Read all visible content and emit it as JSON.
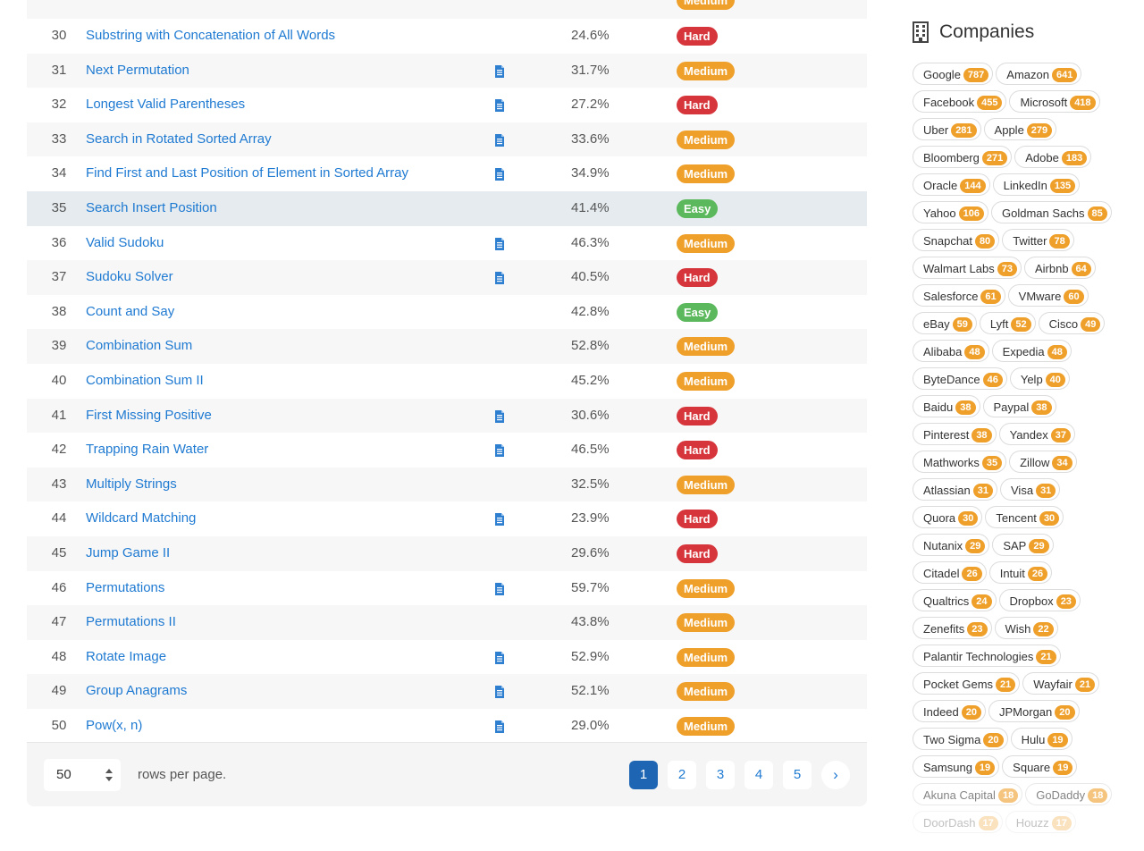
{
  "table": {
    "cut_row": {
      "difficulty": "Medium"
    },
    "rows": [
      {
        "num": "30",
        "title": "Substring with Concatenation of All Words",
        "solution": false,
        "acceptance": "24.6%",
        "difficulty": "Hard"
      },
      {
        "num": "31",
        "title": "Next Permutation",
        "solution": true,
        "acceptance": "31.7%",
        "difficulty": "Medium"
      },
      {
        "num": "32",
        "title": "Longest Valid Parentheses",
        "solution": true,
        "acceptance": "27.2%",
        "difficulty": "Hard"
      },
      {
        "num": "33",
        "title": "Search in Rotated Sorted Array",
        "solution": true,
        "acceptance": "33.6%",
        "difficulty": "Medium"
      },
      {
        "num": "34",
        "title": "Find First and Last Position of Element in Sorted Array",
        "solution": true,
        "acceptance": "34.9%",
        "difficulty": "Medium"
      },
      {
        "num": "35",
        "title": "Search Insert Position",
        "solution": false,
        "acceptance": "41.4%",
        "difficulty": "Easy",
        "highlight": true
      },
      {
        "num": "36",
        "title": "Valid Sudoku",
        "solution": true,
        "acceptance": "46.3%",
        "difficulty": "Medium"
      },
      {
        "num": "37",
        "title": "Sudoku Solver",
        "solution": true,
        "acceptance": "40.5%",
        "difficulty": "Hard"
      },
      {
        "num": "38",
        "title": "Count and Say",
        "solution": false,
        "acceptance": "42.8%",
        "difficulty": "Easy"
      },
      {
        "num": "39",
        "title": "Combination Sum",
        "solution": false,
        "acceptance": "52.8%",
        "difficulty": "Medium"
      },
      {
        "num": "40",
        "title": "Combination Sum II",
        "solution": false,
        "acceptance": "45.2%",
        "difficulty": "Medium"
      },
      {
        "num": "41",
        "title": "First Missing Positive",
        "solution": true,
        "acceptance": "30.6%",
        "difficulty": "Hard"
      },
      {
        "num": "42",
        "title": "Trapping Rain Water",
        "solution": true,
        "acceptance": "46.5%",
        "difficulty": "Hard"
      },
      {
        "num": "43",
        "title": "Multiply Strings",
        "solution": false,
        "acceptance": "32.5%",
        "difficulty": "Medium"
      },
      {
        "num": "44",
        "title": "Wildcard Matching",
        "solution": true,
        "acceptance": "23.9%",
        "difficulty": "Hard"
      },
      {
        "num": "45",
        "title": "Jump Game II",
        "solution": false,
        "acceptance": "29.6%",
        "difficulty": "Hard"
      },
      {
        "num": "46",
        "title": "Permutations",
        "solution": true,
        "acceptance": "59.7%",
        "difficulty": "Medium"
      },
      {
        "num": "47",
        "title": "Permutations II",
        "solution": false,
        "acceptance": "43.8%",
        "difficulty": "Medium"
      },
      {
        "num": "48",
        "title": "Rotate Image",
        "solution": true,
        "acceptance": "52.9%",
        "difficulty": "Medium"
      },
      {
        "num": "49",
        "title": "Group Anagrams",
        "solution": true,
        "acceptance": "52.1%",
        "difficulty": "Medium"
      },
      {
        "num": "50",
        "title": "Pow(x, n)",
        "solution": true,
        "acceptance": "29.0%",
        "difficulty": "Medium"
      }
    ]
  },
  "footer": {
    "rows_value": "50",
    "rows_per_page_label": "rows per page.",
    "pages": [
      "1",
      "2",
      "3",
      "4",
      "5"
    ],
    "active_page": "1",
    "next_label": "›"
  },
  "companies": {
    "heading": "Companies",
    "icon": "building-icon",
    "rows": [
      [
        [
          "Google",
          "787"
        ],
        [
          "Amazon",
          "641"
        ]
      ],
      [
        [
          "Facebook",
          "455"
        ],
        [
          "Microsoft",
          "418"
        ]
      ],
      [
        [
          "Uber",
          "281"
        ],
        [
          "Apple",
          "279"
        ]
      ],
      [
        [
          "Bloomberg",
          "271"
        ],
        [
          "Adobe",
          "183"
        ]
      ],
      [
        [
          "Oracle",
          "144"
        ],
        [
          "LinkedIn",
          "135"
        ]
      ],
      [
        [
          "Yahoo",
          "106"
        ],
        [
          "Goldman Sachs",
          "85"
        ]
      ],
      [
        [
          "Snapchat",
          "80"
        ],
        [
          "Twitter",
          "78"
        ]
      ],
      [
        [
          "Walmart Labs",
          "73"
        ],
        [
          "Airbnb",
          "64"
        ]
      ],
      [
        [
          "Salesforce",
          "61"
        ],
        [
          "VMware",
          "60"
        ]
      ],
      [
        [
          "eBay",
          "59"
        ],
        [
          "Lyft",
          "52"
        ],
        [
          "Cisco",
          "49"
        ]
      ],
      [
        [
          "Alibaba",
          "48"
        ],
        [
          "Expedia",
          "48"
        ]
      ],
      [
        [
          "ByteDance",
          "46"
        ],
        [
          "Yelp",
          "40"
        ]
      ],
      [
        [
          "Baidu",
          "38"
        ],
        [
          "Paypal",
          "38"
        ]
      ],
      [
        [
          "Pinterest",
          "38"
        ],
        [
          "Yandex",
          "37"
        ]
      ],
      [
        [
          "Mathworks",
          "35"
        ],
        [
          "Zillow",
          "34"
        ]
      ],
      [
        [
          "Atlassian",
          "31"
        ],
        [
          "Visa",
          "31"
        ]
      ],
      [
        [
          "Quora",
          "30"
        ],
        [
          "Tencent",
          "30"
        ]
      ],
      [
        [
          "Nutanix",
          "29"
        ],
        [
          "SAP",
          "29"
        ]
      ],
      [
        [
          "Citadel",
          "26"
        ],
        [
          "Intuit",
          "26"
        ]
      ],
      [
        [
          "Qualtrics",
          "24"
        ],
        [
          "Dropbox",
          "23"
        ]
      ],
      [
        [
          "Zenefits",
          "23"
        ],
        [
          "Wish",
          "22"
        ]
      ],
      [
        [
          "Palantir Technologies",
          "21"
        ]
      ],
      [
        [
          "Pocket Gems",
          "21"
        ],
        [
          "Wayfair",
          "21"
        ]
      ],
      [
        [
          "Indeed",
          "20"
        ],
        [
          "JPMorgan",
          "20"
        ]
      ],
      [
        [
          "Two Sigma",
          "20"
        ],
        [
          "Hulu",
          "19"
        ]
      ],
      [
        [
          "Samsung",
          "19"
        ],
        [
          "Square",
          "19"
        ]
      ],
      [
        [
          "Akuna Capital",
          "18"
        ],
        [
          "GoDaddy",
          "18"
        ]
      ],
      [
        [
          "DoorDash",
          "17"
        ],
        [
          "Houzz",
          "17"
        ]
      ]
    ]
  },
  "colors": {
    "link": "#1f7ad2",
    "hard": "#d6363b",
    "medium": "#efa02b",
    "easy": "#5cb85c",
    "active_page": "#1e66b3",
    "highlight_row": "#e5ebee"
  }
}
